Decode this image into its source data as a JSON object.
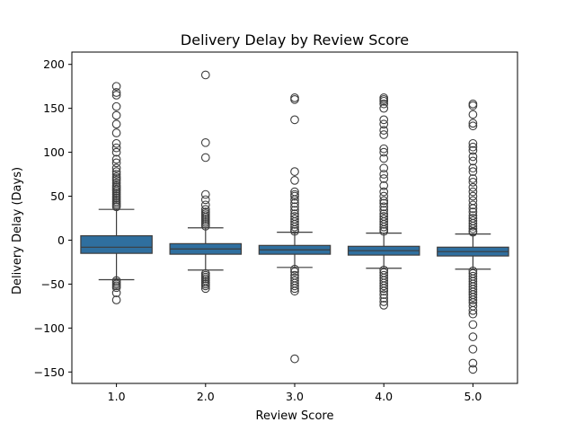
{
  "chart_data": {
    "type": "box",
    "title": "Delivery Delay by Review Score",
    "xlabel": "Review Score",
    "ylabel": "Delivery Delay (Days)",
    "ylim": [
      -163,
      214
    ],
    "yticks": [
      -150,
      -100,
      -50,
      0,
      50,
      100,
      150,
      200
    ],
    "ytick_labels": [
      "−150",
      "−100",
      "−50",
      "0",
      "50",
      "100",
      "150",
      "200"
    ],
    "categories": [
      "1.0",
      "2.0",
      "3.0",
      "4.0",
      "5.0"
    ],
    "box_color": "#2f6f9f",
    "grid": false,
    "boxes": [
      {
        "category": "1.0",
        "whisker_low": -45,
        "q1": -15,
        "median": -8,
        "q3": 5,
        "whisker_high": 35,
        "outliers": [
          175,
          168,
          165,
          152,
          142,
          132,
          122,
          110,
          105,
          100,
          92,
          88,
          82,
          78,
          75,
          72,
          70,
          68,
          65,
          62,
          60,
          58,
          56,
          54,
          52,
          50,
          48,
          46,
          44,
          42,
          40,
          38,
          -46,
          -48,
          -50,
          -52,
          -54,
          -60,
          -68
        ]
      },
      {
        "category": "2.0",
        "whisker_low": -34,
        "q1": -16,
        "median": -10,
        "q3": -4,
        "whisker_high": 14,
        "outliers": [
          188,
          111,
          94,
          52,
          46,
          40,
          35,
          32,
          30,
          28,
          26,
          24,
          22,
          20,
          18,
          16,
          -38,
          -40,
          -42,
          -44,
          -46,
          -48,
          -50,
          -52,
          -55
        ]
      },
      {
        "category": "3.0",
        "whisker_low": -31,
        "q1": -16,
        "median": -11,
        "q3": -6,
        "whisker_high": 9,
        "outliers": [
          162,
          160,
          137,
          78,
          68,
          55,
          52,
          50,
          46,
          42,
          38,
          34,
          30,
          27,
          24,
          21,
          18,
          15,
          12,
          10,
          -33,
          -36,
          -40,
          -43,
          -46,
          -49,
          -52,
          -55,
          -58,
          -135
        ]
      },
      {
        "category": "4.0",
        "whisker_low": -32,
        "q1": -17,
        "median": -12,
        "q3": -7,
        "whisker_high": 8,
        "outliers": [
          162,
          160,
          158,
          155,
          150,
          137,
          132,
          125,
          120,
          104,
          100,
          93,
          82,
          75,
          70,
          62,
          55,
          50,
          45,
          42,
          38,
          34,
          30,
          27,
          24,
          21,
          18,
          15,
          12,
          10,
          -34,
          -37,
          -40,
          -43,
          -46,
          -49,
          -52,
          -55,
          -58,
          -62,
          -66,
          -70,
          -74
        ]
      },
      {
        "category": "5.0",
        "whisker_low": -33,
        "q1": -18,
        "median": -13,
        "q3": -8,
        "whisker_high": 7,
        "outliers": [
          155,
          153,
          143,
          133,
          130,
          110,
          106,
          102,
          95,
          90,
          82,
          78,
          70,
          66,
          60,
          55,
          50,
          45,
          40,
          36,
          32,
          28,
          25,
          22,
          19,
          16,
          13,
          10,
          9,
          -35,
          -38,
          -41,
          -44,
          -47,
          -50,
          -53,
          -56,
          -59,
          -62,
          -65,
          -68,
          -71,
          -75,
          -80,
          -84,
          -96,
          -110,
          -124,
          -140,
          -147
        ]
      }
    ]
  }
}
